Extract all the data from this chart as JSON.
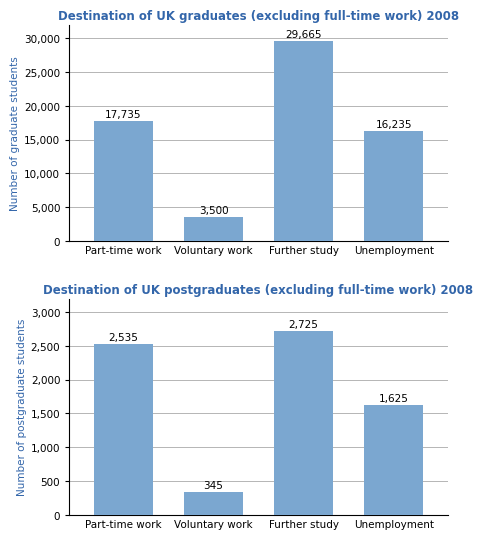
{
  "grad_title": "Destination of UK graduates (excluding full-time work) 2008",
  "postgrad_title": "Destination of UK postgraduates (excluding full-time work) 2008",
  "categories": [
    "Part-time work",
    "Voluntary work",
    "Further study",
    "Unemployment"
  ],
  "grad_values": [
    17735,
    3500,
    29665,
    16235
  ],
  "postgrad_values": [
    2535,
    345,
    2725,
    1625
  ],
  "grad_labels": [
    "17,735",
    "3,500",
    "29,665",
    "16,235"
  ],
  "postgrad_labels": [
    "2,535",
    "345",
    "2,725",
    "1,625"
  ],
  "bar_color": "#7BA7D0",
  "grad_ylabel": "Number of graduate students",
  "postgrad_ylabel": "Number of postgraduate students",
  "grad_ylim": [
    0,
    32000
  ],
  "postgrad_ylim": [
    0,
    3200
  ],
  "grad_yticks": [
    0,
    5000,
    10000,
    15000,
    20000,
    25000,
    30000
  ],
  "postgrad_yticks": [
    0,
    500,
    1000,
    1500,
    2000,
    2500,
    3000
  ],
  "title_color": "#3366AA",
  "ylabel_color": "#3366AA",
  "title_fontsize": 8.5,
  "label_fontsize": 7.5,
  "ylabel_fontsize": 7.5,
  "xtick_fontsize": 7.5,
  "ytick_fontsize": 7.5,
  "background_color": "#FFFFFF",
  "grid_color": "#AAAAAA",
  "bar_width": 0.65
}
